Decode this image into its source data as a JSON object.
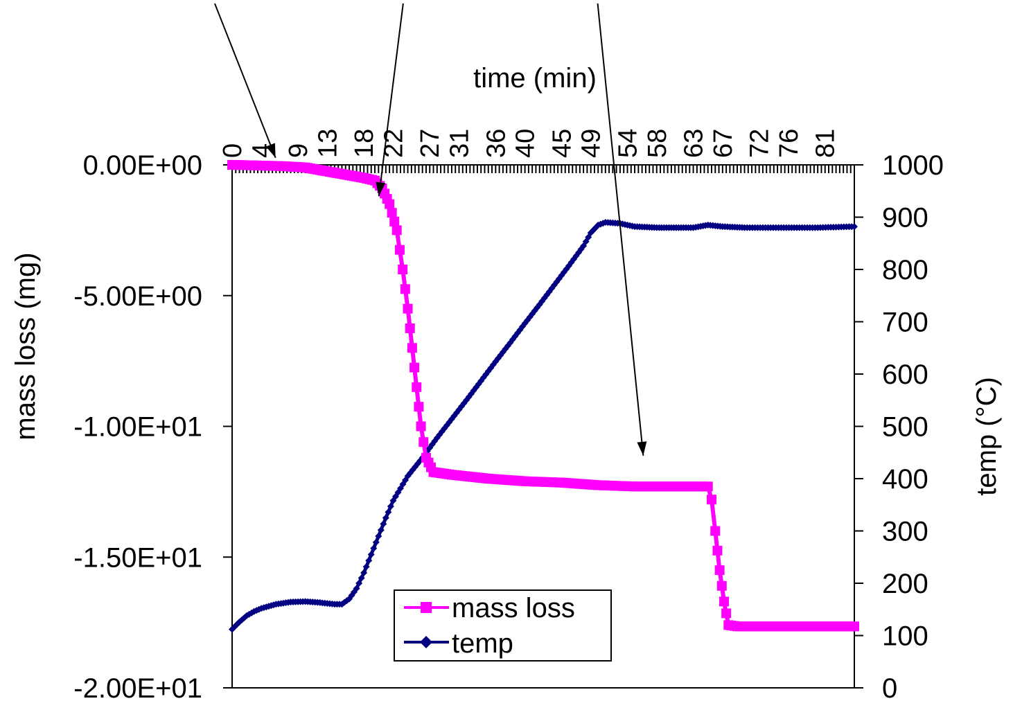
{
  "chart_data": {
    "type": "line",
    "title": "",
    "xlabel": "time (min)",
    "ylabel_left": "mass loss (mg)",
    "ylabel_right": "temp (°C)",
    "x_range": [
      0,
      85
    ],
    "ylim_left": [
      -20,
      0
    ],
    "ylim_right": [
      0,
      1000
    ],
    "x_tick_labels": [
      "0",
      "4",
      "9",
      "13",
      "18",
      "22",
      "27",
      "31",
      "36",
      "40",
      "45",
      "49",
      "54",
      "58",
      "63",
      "67",
      "72",
      "76",
      "81"
    ],
    "y_left_tick_labels": [
      "0.00E+00",
      "-5.00E+00",
      "-1.00E+01",
      "-1.50E+01",
      "-2.00E+01"
    ],
    "y_left_tick_values": [
      0,
      -5,
      -10,
      -15,
      -20
    ],
    "y_right_tick_labels": [
      "1000",
      "900",
      "800",
      "700",
      "600",
      "500",
      "400",
      "300",
      "200",
      "100",
      "0"
    ],
    "y_right_tick_values": [
      1000,
      900,
      800,
      700,
      600,
      500,
      400,
      300,
      200,
      100,
      0
    ],
    "x_axis_position": "top",
    "legend_position": "bottom-center",
    "grid": false,
    "series": [
      {
        "name": "mass loss",
        "axis": "left",
        "color": "#ff00ff",
        "marker": "square",
        "points": [
          [
            0,
            0
          ],
          [
            3,
            -0.02
          ],
          [
            7,
            -0.05
          ],
          [
            10,
            -0.1
          ],
          [
            12,
            -0.2
          ],
          [
            15,
            -0.35
          ],
          [
            18,
            -0.5
          ],
          [
            19.5,
            -0.6
          ],
          [
            20.5,
            -0.9
          ],
          [
            21.5,
            -1.5
          ],
          [
            22.5,
            -2.5
          ],
          [
            23.3,
            -4
          ],
          [
            24,
            -5.5
          ],
          [
            24.6,
            -7
          ],
          [
            25.2,
            -8.5
          ],
          [
            25.8,
            -10
          ],
          [
            26.5,
            -11.2
          ],
          [
            27.5,
            -11.75
          ],
          [
            30,
            -11.85
          ],
          [
            35,
            -12
          ],
          [
            40,
            -12.1
          ],
          [
            45,
            -12.15
          ],
          [
            50,
            -12.25
          ],
          [
            55,
            -12.3
          ],
          [
            60,
            -12.3
          ],
          [
            65,
            -12.3
          ],
          [
            65.5,
            -12.8
          ],
          [
            66,
            -14
          ],
          [
            66.6,
            -15.5
          ],
          [
            67.2,
            -16.7
          ],
          [
            67.8,
            -17.6
          ],
          [
            69,
            -17.65
          ],
          [
            75,
            -17.65
          ],
          [
            85,
            -17.65
          ]
        ]
      },
      {
        "name": "temp",
        "axis": "right",
        "color": "#000080",
        "marker": "diamond",
        "points": [
          [
            0,
            112
          ],
          [
            1,
            126
          ],
          [
            2,
            138
          ],
          [
            3,
            146
          ],
          [
            4,
            152
          ],
          [
            6,
            160
          ],
          [
            8,
            164
          ],
          [
            10,
            165
          ],
          [
            12,
            163
          ],
          [
            14,
            160
          ],
          [
            15,
            160
          ],
          [
            16,
            170
          ],
          [
            17,
            190
          ],
          [
            18,
            220
          ],
          [
            19,
            255
          ],
          [
            20,
            290
          ],
          [
            21,
            325
          ],
          [
            22,
            358
          ],
          [
            24,
            405
          ],
          [
            26,
            440
          ],
          [
            28,
            478
          ],
          [
            30,
            514
          ],
          [
            32,
            550
          ],
          [
            34,
            587
          ],
          [
            36,
            624
          ],
          [
            38,
            660
          ],
          [
            40,
            697
          ],
          [
            42,
            733
          ],
          [
            44,
            770
          ],
          [
            46,
            807
          ],
          [
            48,
            845
          ],
          [
            49,
            870
          ],
          [
            50,
            885
          ],
          [
            51,
            890
          ],
          [
            53,
            888
          ],
          [
            55,
            882
          ],
          [
            58,
            880
          ],
          [
            60,
            880
          ],
          [
            63,
            880
          ],
          [
            65,
            885
          ],
          [
            67,
            882
          ],
          [
            70,
            880
          ],
          [
            75,
            880
          ],
          [
            80,
            880
          ],
          [
            85,
            882
          ]
        ]
      }
    ],
    "annotations": [
      {
        "type": "arrow",
        "from": [
          0.212,
          0.005
        ],
        "to": [
          0.272,
          0.225
        ]
      },
      {
        "type": "arrow",
        "from": [
          0.398,
          0.005
        ],
        "to": [
          0.374,
          0.28
        ]
      },
      {
        "type": "arrow",
        "from": [
          0.59,
          0.005
        ],
        "to": [
          0.635,
          0.65
        ]
      }
    ]
  }
}
